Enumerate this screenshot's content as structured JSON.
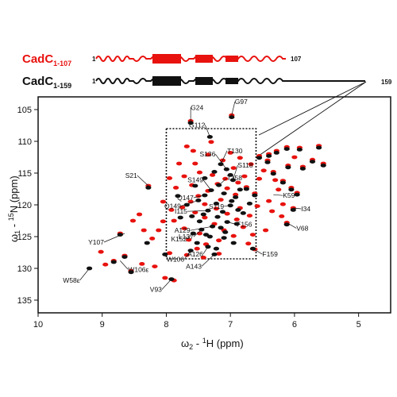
{
  "constructs": [
    {
      "name": "CadC",
      "range": "1-107",
      "start": "1",
      "end": "107",
      "color": "#e8120e"
    },
    {
      "name": "CadC",
      "range": "1-159",
      "start": "1",
      "end": "159",
      "color": "#111111"
    }
  ],
  "zoom_end_label": "159",
  "chart_data": {
    "type": "scatter",
    "xlabel_main": "ω",
    "xlabel_sub": "2",
    "xlabel_rest": " - ",
    "xlabel_sup": "1",
    "xlabel_end": "H  (ppm)",
    "ylabel_main": "ω",
    "ylabel_sub": "1",
    "ylabel_rest": " - ",
    "ylabel_sup": "15",
    "ylabel_end": "N  (ppm)",
    "xlim": [
      10,
      4.5
    ],
    "ylim": [
      103,
      137
    ],
    "xticks": [
      "10",
      "9",
      "8",
      "7",
      "6",
      "5"
    ],
    "yticks": [
      "105",
      "110",
      "115",
      "120",
      "125",
      "130",
      "135"
    ],
    "grid": false,
    "series": [
      {
        "name": "CadC 1-107",
        "color": "#e8120e",
        "points": [
          [
            7.62,
            106.8
          ],
          [
            6.98,
            105.9
          ],
          [
            8.28,
            117.0
          ],
          [
            6.02,
            120.5
          ],
          [
            6.12,
            122.8
          ],
          [
            6.62,
            118.2
          ],
          [
            6.75,
            117.2
          ],
          [
            6.55,
            112.3
          ],
          [
            6.42,
            113.0
          ],
          [
            6.33,
            114.8
          ],
          [
            6.18,
            116.2
          ],
          [
            6.05,
            117.3
          ],
          [
            5.96,
            118.1
          ],
          [
            6.28,
            111.5
          ],
          [
            6.4,
            112.0
          ],
          [
            6.1,
            113.8
          ],
          [
            5.87,
            114.0
          ],
          [
            5.72,
            112.9
          ],
          [
            5.62,
            110.7
          ],
          [
            5.55,
            113.5
          ],
          [
            6.12,
            110.9
          ],
          [
            5.92,
            111.0
          ],
          [
            6.48,
            114.6
          ],
          [
            6.3,
            116.1
          ],
          [
            6.25,
            117.6
          ],
          [
            6.4,
            119.4
          ],
          [
            6.18,
            119.9
          ],
          [
            6.0,
            112.5
          ],
          [
            6.58,
            120.2
          ],
          [
            6.7,
            121.7
          ],
          [
            6.9,
            122.3
          ],
          [
            6.85,
            120.5
          ],
          [
            6.92,
            118.4
          ],
          [
            7.05,
            117.4
          ],
          [
            7.2,
            116.7
          ],
          [
            7.35,
            117.8
          ],
          [
            7.5,
            118.6
          ],
          [
            7.62,
            119.5
          ],
          [
            7.75,
            120.4
          ],
          [
            7.55,
            121.2
          ],
          [
            7.4,
            122.0
          ],
          [
            7.25,
            123.0
          ],
          [
            7.1,
            124.0
          ],
          [
            6.95,
            124.9
          ],
          [
            7.18,
            125.6
          ],
          [
            7.38,
            126.2
          ],
          [
            7.52,
            126.9
          ],
          [
            7.65,
            125.5
          ],
          [
            7.72,
            123.7
          ],
          [
            7.88,
            122.5
          ],
          [
            7.48,
            114.9
          ],
          [
            7.28,
            115.3
          ],
          [
            7.08,
            115.9
          ],
          [
            6.95,
            114.2
          ],
          [
            7.12,
            113.0
          ],
          [
            7.35,
            112.1
          ],
          [
            7.55,
            113.5
          ],
          [
            7.72,
            115.5
          ],
          [
            7.85,
            117.3
          ],
          [
            7.92,
            120.8
          ],
          [
            8.05,
            122.6
          ],
          [
            8.12,
            124.0
          ],
          [
            8.22,
            125.3
          ],
          [
            8.35,
            124.0
          ],
          [
            7.95,
            127.6
          ],
          [
            7.68,
            127.9
          ],
          [
            7.42,
            128.3
          ],
          [
            7.18,
            127.7
          ],
          [
            8.72,
            124.5
          ],
          [
            8.65,
            128.0
          ],
          [
            8.55,
            130.4
          ],
          [
            8.82,
            128.8
          ],
          [
            8.38,
            129.3
          ],
          [
            8.02,
            131.5
          ],
          [
            7.88,
            131.9
          ],
          [
            8.95,
            129.4
          ],
          [
            9.02,
            127.4
          ],
          [
            8.18,
            129.7
          ],
          [
            7.6,
            116.9
          ],
          [
            7.4,
            119.9
          ],
          [
            7.22,
            120.6
          ],
          [
            7.05,
            121.4
          ],
          [
            6.8,
            123.5
          ],
          [
            6.65,
            124.7
          ],
          [
            6.55,
            115.9
          ],
          [
            6.68,
            113.6
          ],
          [
            6.85,
            112.6
          ],
          [
            7.0,
            111.8
          ],
          [
            7.68,
            110.8
          ],
          [
            7.3,
            110.1
          ],
          [
            7.58,
            111.5
          ],
          [
            6.62,
            127.0
          ],
          [
            6.45,
            124.0
          ],
          [
            6.35,
            121.0
          ],
          [
            6.2,
            121.8
          ],
          [
            7.8,
            113.5
          ],
          [
            7.95,
            115.8
          ],
          [
            8.05,
            119.5
          ],
          [
            8.42,
            121.5
          ],
          [
            8.52,
            122.5
          ],
          [
            6.78,
            115.5
          ],
          [
            6.88,
            116.5
          ],
          [
            7.15,
            119.2
          ],
          [
            7.48,
            124.5
          ],
          [
            6.72,
            126.1
          ]
        ]
      },
      {
        "name": "CadC 1-159",
        "color": "#111111",
        "points": [
          [
            7.62,
            107.1
          ],
          [
            6.98,
            106.2
          ],
          [
            8.28,
            117.3
          ],
          [
            6.02,
            120.8
          ],
          [
            6.12,
            123.1
          ],
          [
            6.62,
            118.5
          ],
          [
            6.75,
            117.5
          ],
          [
            6.55,
            112.6
          ],
          [
            6.42,
            113.3
          ],
          [
            6.33,
            115.1
          ],
          [
            6.18,
            116.5
          ],
          [
            6.05,
            117.6
          ],
          [
            5.96,
            118.4
          ],
          [
            6.28,
            111.8
          ],
          [
            6.4,
            112.3
          ],
          [
            6.1,
            114.1
          ],
          [
            5.87,
            114.3
          ],
          [
            5.72,
            113.2
          ],
          [
            5.62,
            111.0
          ],
          [
            5.55,
            113.8
          ],
          [
            6.12,
            111.2
          ],
          [
            5.92,
            111.3
          ],
          [
            7.32,
            109.3
          ],
          [
            7.15,
            113.6
          ],
          [
            7.06,
            114.4
          ],
          [
            6.96,
            116.1
          ],
          [
            7.18,
            116.9
          ],
          [
            7.3,
            117.7
          ],
          [
            7.4,
            118.5
          ],
          [
            7.5,
            119.3
          ],
          [
            7.22,
            119.8
          ],
          [
            7.0,
            120.1
          ],
          [
            6.92,
            118.8
          ],
          [
            7.35,
            120.9
          ],
          [
            7.6,
            121.8
          ],
          [
            7.2,
            121.9
          ],
          [
            7.05,
            122.7
          ],
          [
            7.28,
            123.4
          ],
          [
            7.45,
            123.9
          ],
          [
            7.58,
            124.5
          ],
          [
            7.32,
            125.0
          ],
          [
            7.1,
            125.2
          ],
          [
            7.52,
            126.0
          ],
          [
            7.35,
            126.6
          ],
          [
            7.62,
            127.2
          ],
          [
            7.25,
            127.8
          ],
          [
            7.08,
            124.3
          ],
          [
            6.9,
            123.0
          ],
          [
            6.8,
            121.3
          ],
          [
            6.7,
            119.8
          ],
          [
            6.85,
            117.6
          ],
          [
            7.1,
            118.2
          ],
          [
            7.25,
            114.8
          ],
          [
            7.4,
            115.8
          ],
          [
            7.55,
            117.0
          ],
          [
            7.68,
            120.0
          ],
          [
            7.78,
            122.0
          ],
          [
            7.82,
            118.6
          ],
          [
            7.48,
            122.6
          ],
          [
            7.12,
            121.1
          ],
          [
            6.98,
            119.4
          ],
          [
            7.38,
            124.7
          ],
          [
            7.42,
            121.5
          ],
          [
            6.65,
            126.9
          ],
          [
            6.95,
            126.0
          ],
          [
            7.15,
            123.6
          ],
          [
            6.88,
            120.8
          ],
          [
            7.22,
            126.9
          ],
          [
            8.72,
            124.7
          ],
          [
            8.65,
            128.2
          ],
          [
            8.55,
            130.6
          ],
          [
            8.82,
            129.0
          ],
          [
            9.2,
            130.0
          ],
          [
            7.92,
            131.7
          ],
          [
            8.02,
            127.8
          ],
          [
            8.3,
            126.0
          ],
          [
            7.0,
            115.3
          ]
        ]
      }
    ],
    "annotations": [
      {
        "label": "G24",
        "x": 7.62,
        "y": 106.8
      },
      {
        "label": "G97",
        "x": 6.98,
        "y": 105.9
      },
      {
        "label": "G112",
        "x": 7.32,
        "y": 109.3
      },
      {
        "label": "T130",
        "x": 7.15,
        "y": 113.6
      },
      {
        "label": "S136",
        "x": 7.06,
        "y": 114.4
      },
      {
        "label": "S118",
        "x": 6.96,
        "y": 116.1
      },
      {
        "label": "T158",
        "x": 7.18,
        "y": 116.9
      },
      {
        "label": "S21",
        "x": 8.28,
        "y": 117.0
      },
      {
        "label": "K59",
        "x": 6.33,
        "y": 118.4
      },
      {
        "label": "S149",
        "x": 7.3,
        "y": 117.7
      },
      {
        "label": "S119",
        "x": 7.0,
        "y": 120.1
      },
      {
        "label": "Q147",
        "x": 7.4,
        "y": 118.5
      },
      {
        "label": "I34",
        "x": 6.02,
        "y": 120.5
      },
      {
        "label": "Q149",
        "x": 7.5,
        "y": 119.3
      },
      {
        "label": "F156",
        "x": 7.05,
        "y": 122.7
      },
      {
        "label": "I115",
        "x": 7.35,
        "y": 120.9
      },
      {
        "label": "V68",
        "x": 6.12,
        "y": 122.8
      },
      {
        "label": "A129",
        "x": 7.28,
        "y": 123.4
      },
      {
        "label": "L137",
        "x": 7.45,
        "y": 123.9
      },
      {
        "label": "K152",
        "x": 7.58,
        "y": 124.5
      },
      {
        "label": "Y107",
        "x": 8.65,
        "y": 124.5
      },
      {
        "label": "A126",
        "x": 7.35,
        "y": 126.6
      },
      {
        "label": "F159",
        "x": 6.65,
        "y": 126.9
      },
      {
        "label": "W106",
        "x": 7.62,
        "y": 127.2
      },
      {
        "label": "W106ε",
        "x": 8.72,
        "y": 128.8
      },
      {
        "label": "A143",
        "x": 7.25,
        "y": 127.8
      },
      {
        "label": "W58ε",
        "x": 9.2,
        "y": 130.0
      },
      {
        "label": "V93",
        "x": 7.92,
        "y": 131.7
      }
    ],
    "zoom_box_ppm": {
      "x": [
        8.0,
        6.6
      ],
      "y": [
        108.0,
        128.5
      ]
    }
  }
}
